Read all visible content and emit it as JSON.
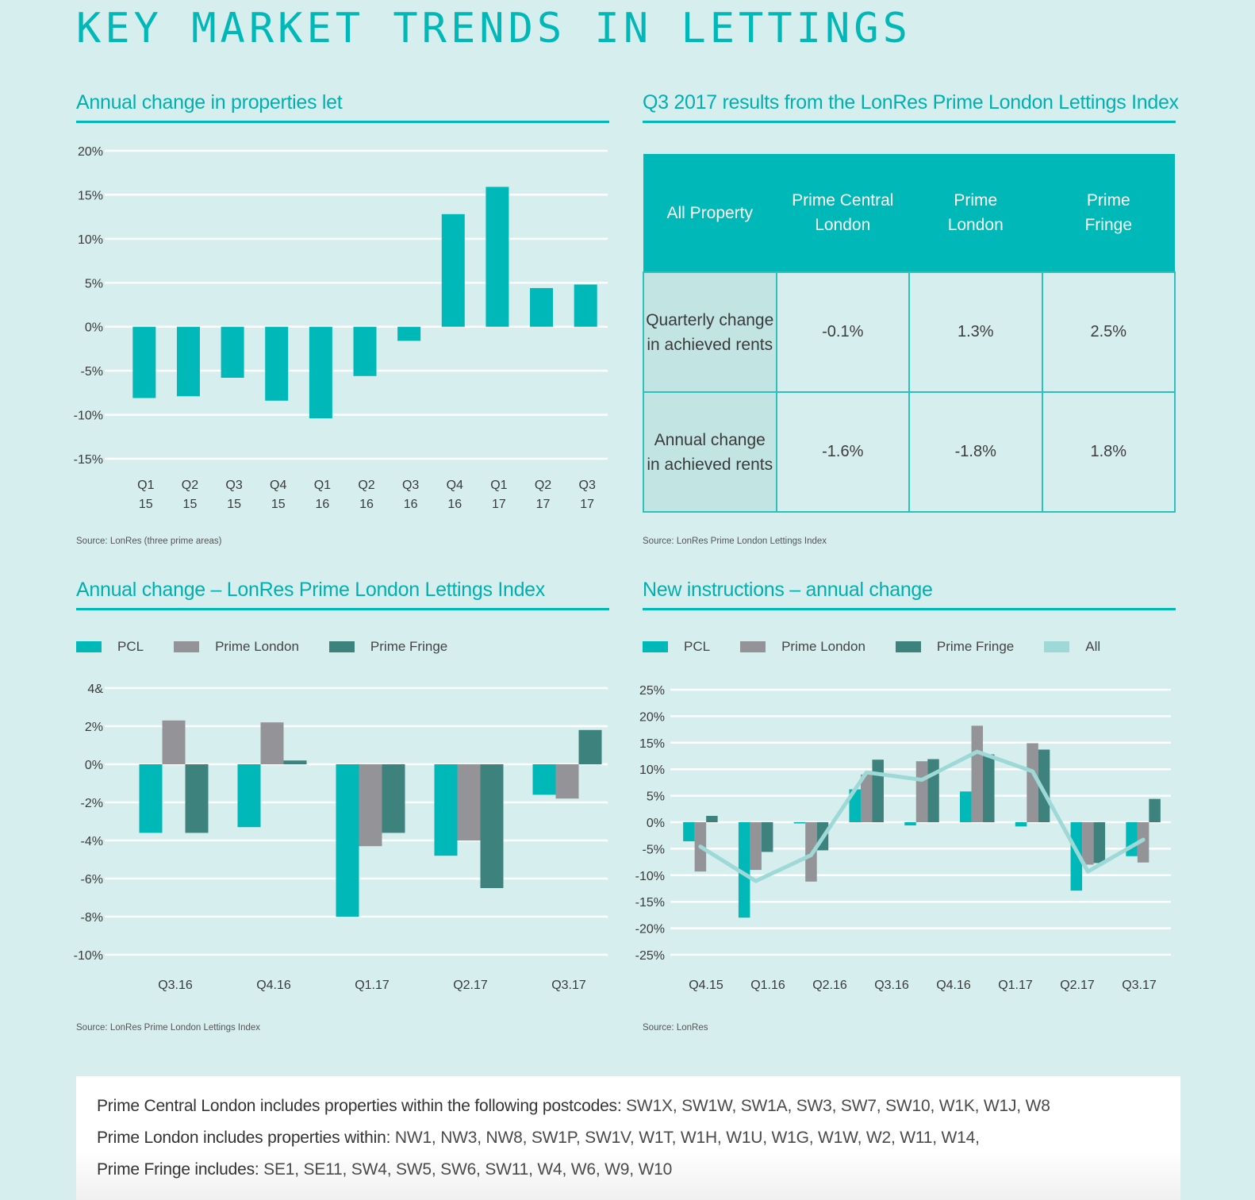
{
  "page": {
    "title": "KEY MARKET TRENDS IN LETTINGS"
  },
  "colors": {
    "pcl": "#00b8b7",
    "prime_london": "#949498",
    "prime_fringe": "#3e827e",
    "all": "#9ed9d8",
    "accent": "#00b8b7",
    "background": "#d6eeee",
    "gridline": "#ffffff"
  },
  "sections": {
    "properties_let": {
      "title": "Annual change in properties let",
      "source": "Source: LonRes (three prime areas)"
    },
    "results_table": {
      "title": "Q3 2017 results from the LonRes Prime London Lettings Index",
      "source": "Source: LonRes Prime London Lettings Index",
      "headers": [
        "All Property",
        "Prime Central London",
        "Prime London",
        "Prime Fringe"
      ],
      "header_lines": [
        [
          "All Property"
        ],
        [
          "Prime Central",
          "London"
        ],
        [
          "Prime",
          "London"
        ],
        [
          "Prime",
          "Fringe"
        ]
      ],
      "rows": [
        {
          "label_lines": [
            "Quarterly change",
            "in achieved rents"
          ],
          "label": "Quarterly change in achieved rents",
          "values": [
            "-0.1%",
            "1.3%",
            "2.5%"
          ]
        },
        {
          "label_lines": [
            "Annual change",
            "in achieved rents"
          ],
          "label": "Annual change in achieved rents",
          "values": [
            "-1.6%",
            "-1.8%",
            "1.8%"
          ]
        }
      ]
    },
    "lettings_index": {
      "title": "Annual change – LonRes Prime London Lettings Index",
      "source": "Source: LonRes Prime London Lettings Index",
      "legend": [
        "PCL",
        "Prime London",
        "Prime Fringe"
      ]
    },
    "new_instructions": {
      "title": "New instructions – annual change",
      "source": "Source: LonRes",
      "legend": [
        "PCL",
        "Prime London",
        "Prime Fringe",
        "All"
      ]
    }
  },
  "notes": [
    {
      "label": "Prime Central London includes properties within the following postcodes:",
      "value": "SW1X, SW1W, SW1A, SW3, SW7, SW10, W1K, W1J, W8"
    },
    {
      "label": "Prime London includes properties within:",
      "value": "NW1, NW3, NW8, SW1P, SW1V, W1T, W1H, W1U, W1G, W1W, W2, W11, W14,"
    },
    {
      "label": "Prime Fringe includes:",
      "value": "SE1, SE11, SW4, SW5, SW6, SW11, W4, W6, W9, W10"
    }
  ],
  "chart_data": [
    {
      "id": "properties_let",
      "type": "bar",
      "title": "Annual change in properties let",
      "xlabel": "",
      "ylabel": "",
      "categories": [
        [
          "Q1",
          "15"
        ],
        [
          "Q2",
          "15"
        ],
        [
          "Q3",
          "15"
        ],
        [
          "Q4",
          "15"
        ],
        [
          "Q1",
          "16"
        ],
        [
          "Q2",
          "16"
        ],
        [
          "Q3",
          "16"
        ],
        [
          "Q4",
          "16"
        ],
        [
          "Q1",
          "17"
        ],
        [
          "Q2",
          "17"
        ],
        [
          "Q3",
          "17"
        ]
      ],
      "series": [
        {
          "name": "Properties let",
          "color_key": "pcl",
          "values": [
            -8.1,
            -7.9,
            -5.8,
            -8.4,
            -10.4,
            -5.6,
            -1.6,
            12.8,
            15.9,
            4.4,
            4.8
          ]
        }
      ],
      "ylim": [
        -15,
        20
      ],
      "yticks": [
        20,
        15,
        10,
        5,
        0,
        -5,
        -10,
        -15
      ],
      "ytick_labels": [
        "20%",
        "15%",
        "10%",
        "5%",
        "0%",
        "-5%",
        "-10%",
        "-15%"
      ],
      "grid": true,
      "legend": "none"
    },
    {
      "id": "lettings_index",
      "type": "bar",
      "title": "Annual change – LonRes Prime London Lettings Index",
      "xlabel": "",
      "ylabel": "",
      "categories": [
        "Q3.16",
        "Q4.16",
        "Q1.17",
        "Q2.17",
        "Q3.17"
      ],
      "series": [
        {
          "name": "PCL",
          "color_key": "pcl",
          "values": [
            -3.6,
            -3.3,
            -8.0,
            -4.8,
            -1.6
          ]
        },
        {
          "name": "Prime London",
          "color_key": "prime_london",
          "values": [
            2.3,
            2.2,
            -4.3,
            -4.0,
            -1.8
          ]
        },
        {
          "name": "Prime Fringe",
          "color_key": "prime_fringe",
          "values": [
            -3.6,
            0.2,
            -3.6,
            -6.5,
            1.8
          ]
        }
      ],
      "ylim": [
        -10,
        4
      ],
      "yticks": [
        4,
        2,
        0,
        -2,
        -4,
        -6,
        -8,
        -10
      ],
      "ytick_labels": [
        "4&",
        "2%",
        "0%",
        "-2%",
        "-4%",
        "-6%",
        "-8%",
        "-10%"
      ],
      "grid": true,
      "legend": "top-left"
    },
    {
      "id": "new_instructions",
      "type": "bar",
      "title": "New instructions – annual change",
      "xlabel": "",
      "ylabel": "",
      "categories": [
        "Q4.15",
        "Q1.16",
        "Q2.16",
        "Q3.16",
        "Q4.16",
        "Q1.17",
        "Q2.17",
        "Q3.17"
      ],
      "series": [
        {
          "name": "PCL",
          "color_key": "pcl",
          "type": "bar",
          "values": [
            -3.6,
            -18.0,
            -0.2,
            6.2,
            -0.6,
            5.8,
            -0.8,
            -12.9,
            -6.4
          ]
        },
        {
          "name": "Prime London",
          "color_key": "prime_london",
          "type": "bar",
          "values": [
            -9.3,
            -9.0,
            -11.2,
            9.0,
            11.5,
            18.2,
            14.9,
            -8.0,
            -7.6
          ]
        },
        {
          "name": "Prime Fringe",
          "color_key": "prime_fringe",
          "type": "bar",
          "values": [
            1.2,
            -5.6,
            -5.3,
            11.8,
            11.9,
            12.8,
            13.7,
            -7.7,
            4.4
          ]
        },
        {
          "name": "All",
          "color_key": "all",
          "type": "line",
          "values": [
            -4.6,
            -11.1,
            -6.2,
            9.4,
            8.0,
            13.3,
            9.6,
            -9.3,
            -3.3
          ]
        }
      ],
      "x_positions_note": "9 clusters; labels shown under every other-ish position",
      "cluster_count": 9,
      "ylim": [
        -25,
        25
      ],
      "yticks": [
        25,
        20,
        15,
        10,
        5,
        0,
        -5,
        -10,
        -15,
        -20,
        -25
      ],
      "ytick_labels": [
        "25%",
        "20%",
        "15%",
        "10%",
        "5%",
        "0%",
        "-5%",
        "-10%",
        "-15%",
        "-20%",
        "-25%"
      ],
      "grid": true,
      "legend": "top-left"
    }
  ]
}
